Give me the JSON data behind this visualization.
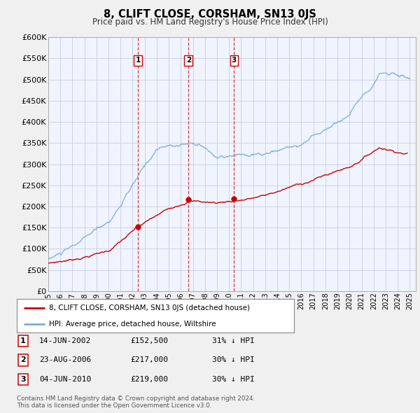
{
  "title": "8, CLIFT CLOSE, CORSHAM, SN13 0JS",
  "subtitle": "Price paid vs. HM Land Registry's House Price Index (HPI)",
  "bg_color": "#f0f0f0",
  "plot_bg_color": "#f0f4ff",
  "grid_color": "#c8cce0",
  "red_color": "#cc0000",
  "blue_color": "#7aabda",
  "ylabel_values": [
    0,
    50000,
    100000,
    150000,
    200000,
    250000,
    300000,
    350000,
    400000,
    450000,
    500000,
    550000,
    600000
  ],
  "ylabel_labels": [
    "£0",
    "£50K",
    "£100K",
    "£150K",
    "£200K",
    "£250K",
    "£300K",
    "£350K",
    "£400K",
    "£450K",
    "£500K",
    "£550K",
    "£600K"
  ],
  "xlim_start": 1995.0,
  "xlim_end": 2025.5,
  "ylim_min": 0,
  "ylim_max": 600000,
  "sale_points": [
    {
      "label": "1",
      "date_num": 2002.45,
      "price": 152500
    },
    {
      "label": "2",
      "date_num": 2006.64,
      "price": 217000
    },
    {
      "label": "3",
      "date_num": 2010.42,
      "price": 219000
    }
  ],
  "legend_entries": [
    {
      "color": "#cc0000",
      "text": "8, CLIFT CLOSE, CORSHAM, SN13 0JS (detached house)"
    },
    {
      "color": "#7aabda",
      "text": "HPI: Average price, detached house, Wiltshire"
    }
  ],
  "table_rows": [
    {
      "num": "1",
      "date": "14-JUN-2002",
      "price": "£152,500",
      "pct": "31% ↓ HPI"
    },
    {
      "num": "2",
      "date": "23-AUG-2006",
      "price": "£217,000",
      "pct": "30% ↓ HPI"
    },
    {
      "num": "3",
      "date": "04-JUN-2010",
      "price": "£219,000",
      "pct": "30% ↓ HPI"
    }
  ],
  "footnote1": "Contains HM Land Registry data © Crown copyright and database right 2024.",
  "footnote2": "This data is licensed under the Open Government Licence v3.0."
}
